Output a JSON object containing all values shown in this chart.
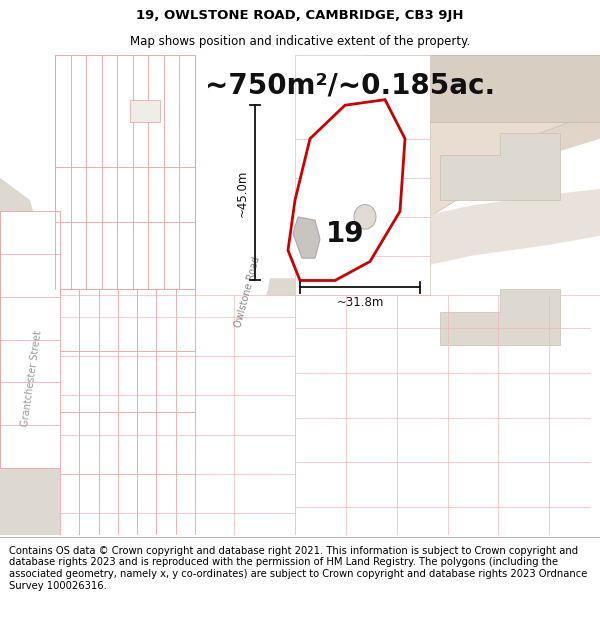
{
  "title_line1": "19, OWLSTONE ROAD, CAMBRIDGE, CB3 9JH",
  "title_line2": "Map shows position and indicative extent of the property.",
  "area_text": "~750m²/~0.185ac.",
  "property_number": "19",
  "dim_vertical": "~45.0m",
  "dim_horizontal": "~31.8m",
  "road_label_owlstone": "Owlstone Road",
  "road_label_grantchester": "Grantchester Street",
  "footer_text": "Contains OS data © Crown copyright and database right 2021. This information is subject to Crown copyright and database rights 2023 and is reproduced with the permission of HM Land Registry. The polygons (including the associated geometry, namely x, y co-ordinates) are subject to Crown copyright and database rights 2023 Ordnance Survey 100026316.",
  "bg_white": "#ffffff",
  "bg_light": "#f8f5f2",
  "tan_area": "#e8ddd0",
  "tan_dark": "#d8cfc4",
  "road_color": "#e0d8cf",
  "plot_line": "#e8a0a0",
  "plot_line2": "#f0b8b8",
  "gray_building": "#c8c4c0",
  "gray_bld2": "#d5d1cd",
  "property_fill": "#ffffff",
  "property_outline": "#cc0000",
  "dim_color": "#111111",
  "title_fontsize": 9.5,
  "subtitle_fontsize": 8.5,
  "area_fontsize": 20,
  "footer_fontsize": 7.2,
  "num_fontsize": 20
}
